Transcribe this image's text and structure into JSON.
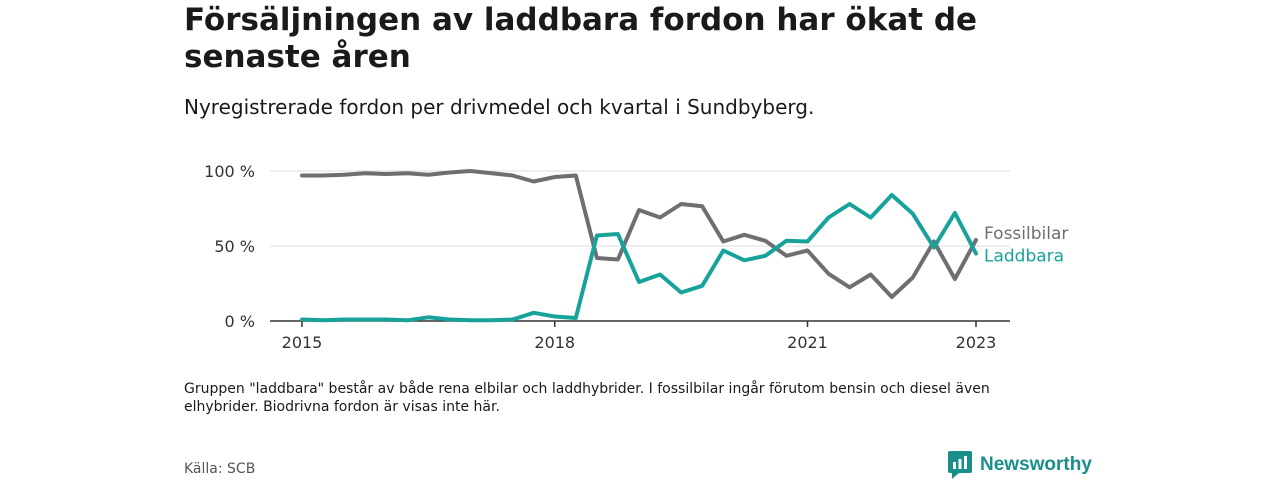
{
  "header": {
    "title": "Försäljningen av laddbara fordon har ökat de senaste åren",
    "subtitle": "Nyregistrerade fordon per drivmedel och kvartal i Sundbyberg."
  },
  "footer": {
    "note": "Gruppen \"laddbara\" består av både rena elbilar och laddhybrider. I fossilbilar ingår förutom bensin och diesel även elhybrider. Biodrivna fordon är visas inte här.",
    "source": "Källa: SCB",
    "brand": "Newsworthy",
    "brand_icon": "newsworthy-logo-icon"
  },
  "colors": {
    "fossil": "#6e6e73",
    "laddbara": "#17a39b",
    "grid": "#dcdcdc",
    "axis": "#333333",
    "brand": "#1a8f8a"
  },
  "chart_data": {
    "type": "line",
    "title": "Försäljningen av laddbara fordon har ökat de senaste åren",
    "subtitle": "Nyregistrerade fordon per drivmedel och kvartal i Sundbyberg.",
    "xlabel": "",
    "ylabel": "",
    "x_unit": "quarter (decimal year)",
    "xlim": [
      2015,
      2023
    ],
    "ylim": [
      0,
      100
    ],
    "xticks": [
      2015,
      2018,
      2021,
      2023
    ],
    "xtick_labels": [
      "2015",
      "2018",
      "2021",
      "2023"
    ],
    "yticks": [
      0,
      50,
      100
    ],
    "ytick_labels": [
      "0 %",
      "50 %",
      "100 %"
    ],
    "grid": true,
    "legend": "right end labels",
    "x": [
      2015,
      2015.25,
      2015.5,
      2015.75,
      2016,
      2016.25,
      2016.5,
      2016.75,
      2017,
      2017.25,
      2017.5,
      2017.75,
      2018,
      2018.25,
      2018.5,
      2018.75,
      2019,
      2019.25,
      2019.5,
      2019.75,
      2020,
      2020.25,
      2020.5,
      2020.75,
      2021,
      2021.25,
      2021.5,
      2021.75,
      2022,
      2022.25,
      2022.5,
      2022.75,
      2023
    ],
    "series": [
      {
        "name": "Fossilbilar",
        "values": [
          97,
          97,
          97.5,
          98.5,
          98,
          98.5,
          97.5,
          99,
          100,
          98.5,
          97,
          93,
          96,
          97,
          42,
          41,
          74,
          69,
          78,
          76.5,
          53,
          57.5,
          53.5,
          43.5,
          47,
          31.5,
          22.5,
          31,
          16,
          29,
          53,
          28,
          54
        ]
      },
      {
        "name": "Laddbara",
        "values": [
          1,
          0.5,
          1,
          1,
          1,
          0.5,
          2.5,
          1,
          0.5,
          0.5,
          1,
          5.5,
          3,
          2,
          57,
          58,
          26,
          31,
          19,
          23.5,
          47,
          40.5,
          43.5,
          53.5,
          53,
          69,
          78,
          69,
          84,
          71.5,
          49,
          72,
          45
        ]
      }
    ]
  }
}
